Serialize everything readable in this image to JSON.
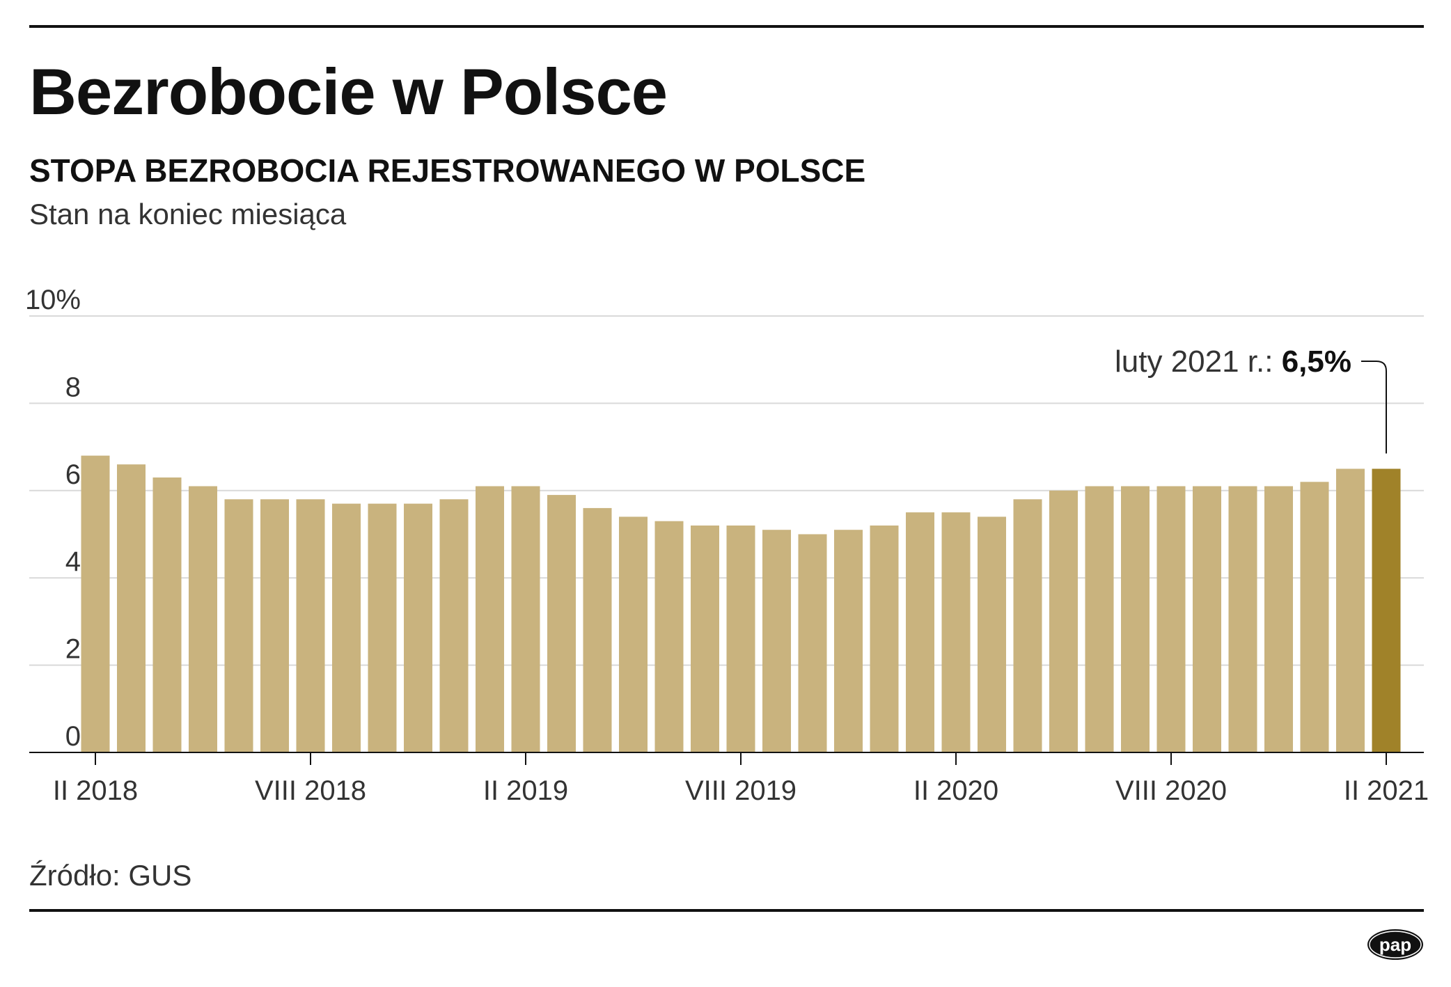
{
  "title": "Bezrobocie w Polsce",
  "subtitle": "STOPA BEZROBOCIA REJESTROWANEGO W POLSCE",
  "note": "Stan na koniec miesiąca",
  "source": "Źródło: GUS",
  "logo_text": "pap",
  "colors": {
    "bar": "#c9b37e",
    "highlight": "#a08229",
    "grid": "#d9d9d9",
    "axis": "#111111"
  },
  "chart_data": {
    "type": "bar",
    "values": [
      6.8,
      6.6,
      6.3,
      6.1,
      5.8,
      5.8,
      5.8,
      5.7,
      5.7,
      5.7,
      5.8,
      6.1,
      6.1,
      5.9,
      5.6,
      5.4,
      5.3,
      5.2,
      5.2,
      5.1,
      5.0,
      5.1,
      5.2,
      5.5,
      5.5,
      5.4,
      5.8,
      6.0,
      6.1,
      6.1,
      6.1,
      6.1,
      6.1,
      6.1,
      6.2,
      6.5,
      6.5
    ],
    "x_tick_labels": [
      {
        "index": 0,
        "label": "II 2018"
      },
      {
        "index": 6,
        "label": "VIII 2018"
      },
      {
        "index": 12,
        "label": "II 2019"
      },
      {
        "index": 18,
        "label": "VIII 2019"
      },
      {
        "index": 24,
        "label": "II 2020"
      },
      {
        "index": 30,
        "label": "VIII 2020"
      },
      {
        "index": 36,
        "label": "II 2021"
      }
    ],
    "y_ticks": [
      "0",
      "2",
      "4",
      "6",
      "8",
      "10%"
    ],
    "ylim": [
      0,
      10
    ],
    "highlight_index": 36,
    "annotation": {
      "label": "luty 2021 r.:",
      "value": "6,5%"
    },
    "grid": true
  }
}
